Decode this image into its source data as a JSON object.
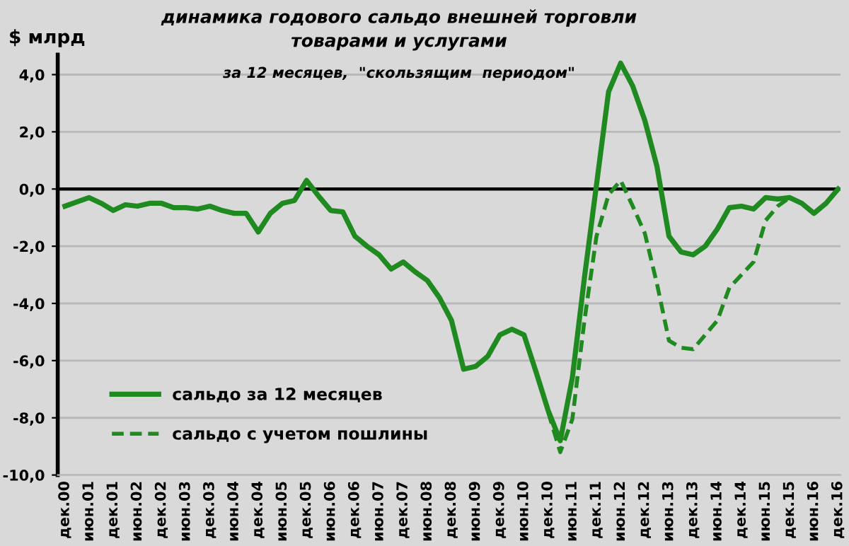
{
  "chart_data": {
    "type": "line",
    "title": "динамика годового сальдо внешней торговли\nтоварами и услугами",
    "subtitle": "за 12 месяцев,  \"скользящим  периодом\"",
    "ylabel": "$ млрд",
    "categories": [
      "дек.00",
      null,
      "июн.01",
      null,
      "дек.01",
      null,
      "июн.02",
      null,
      "дек.02",
      null,
      "июн.03",
      null,
      "дек.03",
      null,
      "июн.04",
      null,
      "дек.04",
      null,
      "июн.05",
      null,
      "дек.05",
      null,
      "июн.06",
      null,
      "дек.06",
      null,
      "июн.07",
      null,
      "дек.07",
      null,
      "июн.08",
      null,
      "дек.08",
      null,
      "июн.09",
      null,
      "дек.09",
      null,
      "июн.10",
      null,
      "дек.10",
      null,
      "июн.11",
      null,
      "дек.11",
      null,
      "июн.12",
      null,
      "дек.12",
      null,
      "июн.13",
      null,
      "дек.13",
      null,
      "июн.14",
      null,
      "дек.14",
      null,
      "июн.15",
      null,
      "дек.15",
      null,
      "июн.16",
      null,
      "дек.16"
    ],
    "series": [
      {
        "name": "сальдо за 12 месяцев",
        "color": "#1f8a1f",
        "line_style": "solid",
        "values": [
          -0.6,
          -0.45,
          -0.3,
          -0.5,
          -0.75,
          -0.55,
          -0.6,
          -0.5,
          -0.5,
          -0.65,
          -0.65,
          -0.7,
          -0.6,
          -0.75,
          -0.85,
          -0.85,
          -1.5,
          -0.85,
          -0.5,
          -0.4,
          0.3,
          -0.25,
          -0.75,
          -0.8,
          -1.65,
          -2.0,
          -2.3,
          -2.8,
          -2.55,
          -2.9,
          -3.2,
          -3.8,
          -4.6,
          -6.3,
          -6.2,
          -5.85,
          -5.1,
          -4.9,
          -5.1,
          -6.4,
          -7.75,
          -8.8,
          -6.6,
          -3.1,
          0.15,
          3.4,
          4.4,
          3.6,
          2.4,
          0.8,
          -1.65,
          -2.2,
          -2.3,
          -2.0,
          -1.4,
          -0.65,
          -0.6,
          -0.7,
          -0.3,
          -0.35,
          -0.3,
          -0.5,
          -0.85,
          -0.5,
          0.0
        ]
      },
      {
        "name": "сальдо с учетом пошлины",
        "color": "#1f8a1f",
        "line_style": "dashed",
        "values": [
          null,
          null,
          null,
          null,
          null,
          null,
          null,
          null,
          null,
          null,
          null,
          null,
          null,
          null,
          null,
          null,
          null,
          null,
          null,
          null,
          null,
          null,
          null,
          null,
          null,
          null,
          null,
          null,
          null,
          null,
          null,
          null,
          null,
          null,
          null,
          null,
          null,
          null,
          null,
          null,
          -7.8,
          -9.2,
          -8.05,
          -4.6,
          -1.65,
          -0.2,
          0.3,
          -0.6,
          -1.55,
          -3.3,
          -5.3,
          -5.55,
          -5.6,
          -5.1,
          -4.6,
          -3.45,
          -3.0,
          -2.55,
          -1.1,
          -0.6,
          -0.3,
          null,
          null,
          null,
          null
        ]
      }
    ],
    "ylim": [
      -10,
      4.7
    ],
    "yticks": [
      {
        "value": -10,
        "label": "-10,0"
      },
      {
        "value": -8,
        "label": "-8,0"
      },
      {
        "value": -6,
        "label": "-6,0"
      },
      {
        "value": -4,
        "label": "-4,0"
      },
      {
        "value": -2,
        "label": "-2,0"
      },
      {
        "value": 0,
        "label": "0,0"
      },
      {
        "value": 2,
        "label": "2,0"
      },
      {
        "value": 4,
        "label": "4,0"
      }
    ],
    "ref_lines": [
      {
        "axis": "y",
        "value": 0,
        "color": "#000000"
      }
    ],
    "grid": "y",
    "legend": "bottom left",
    "marker": "none"
  }
}
